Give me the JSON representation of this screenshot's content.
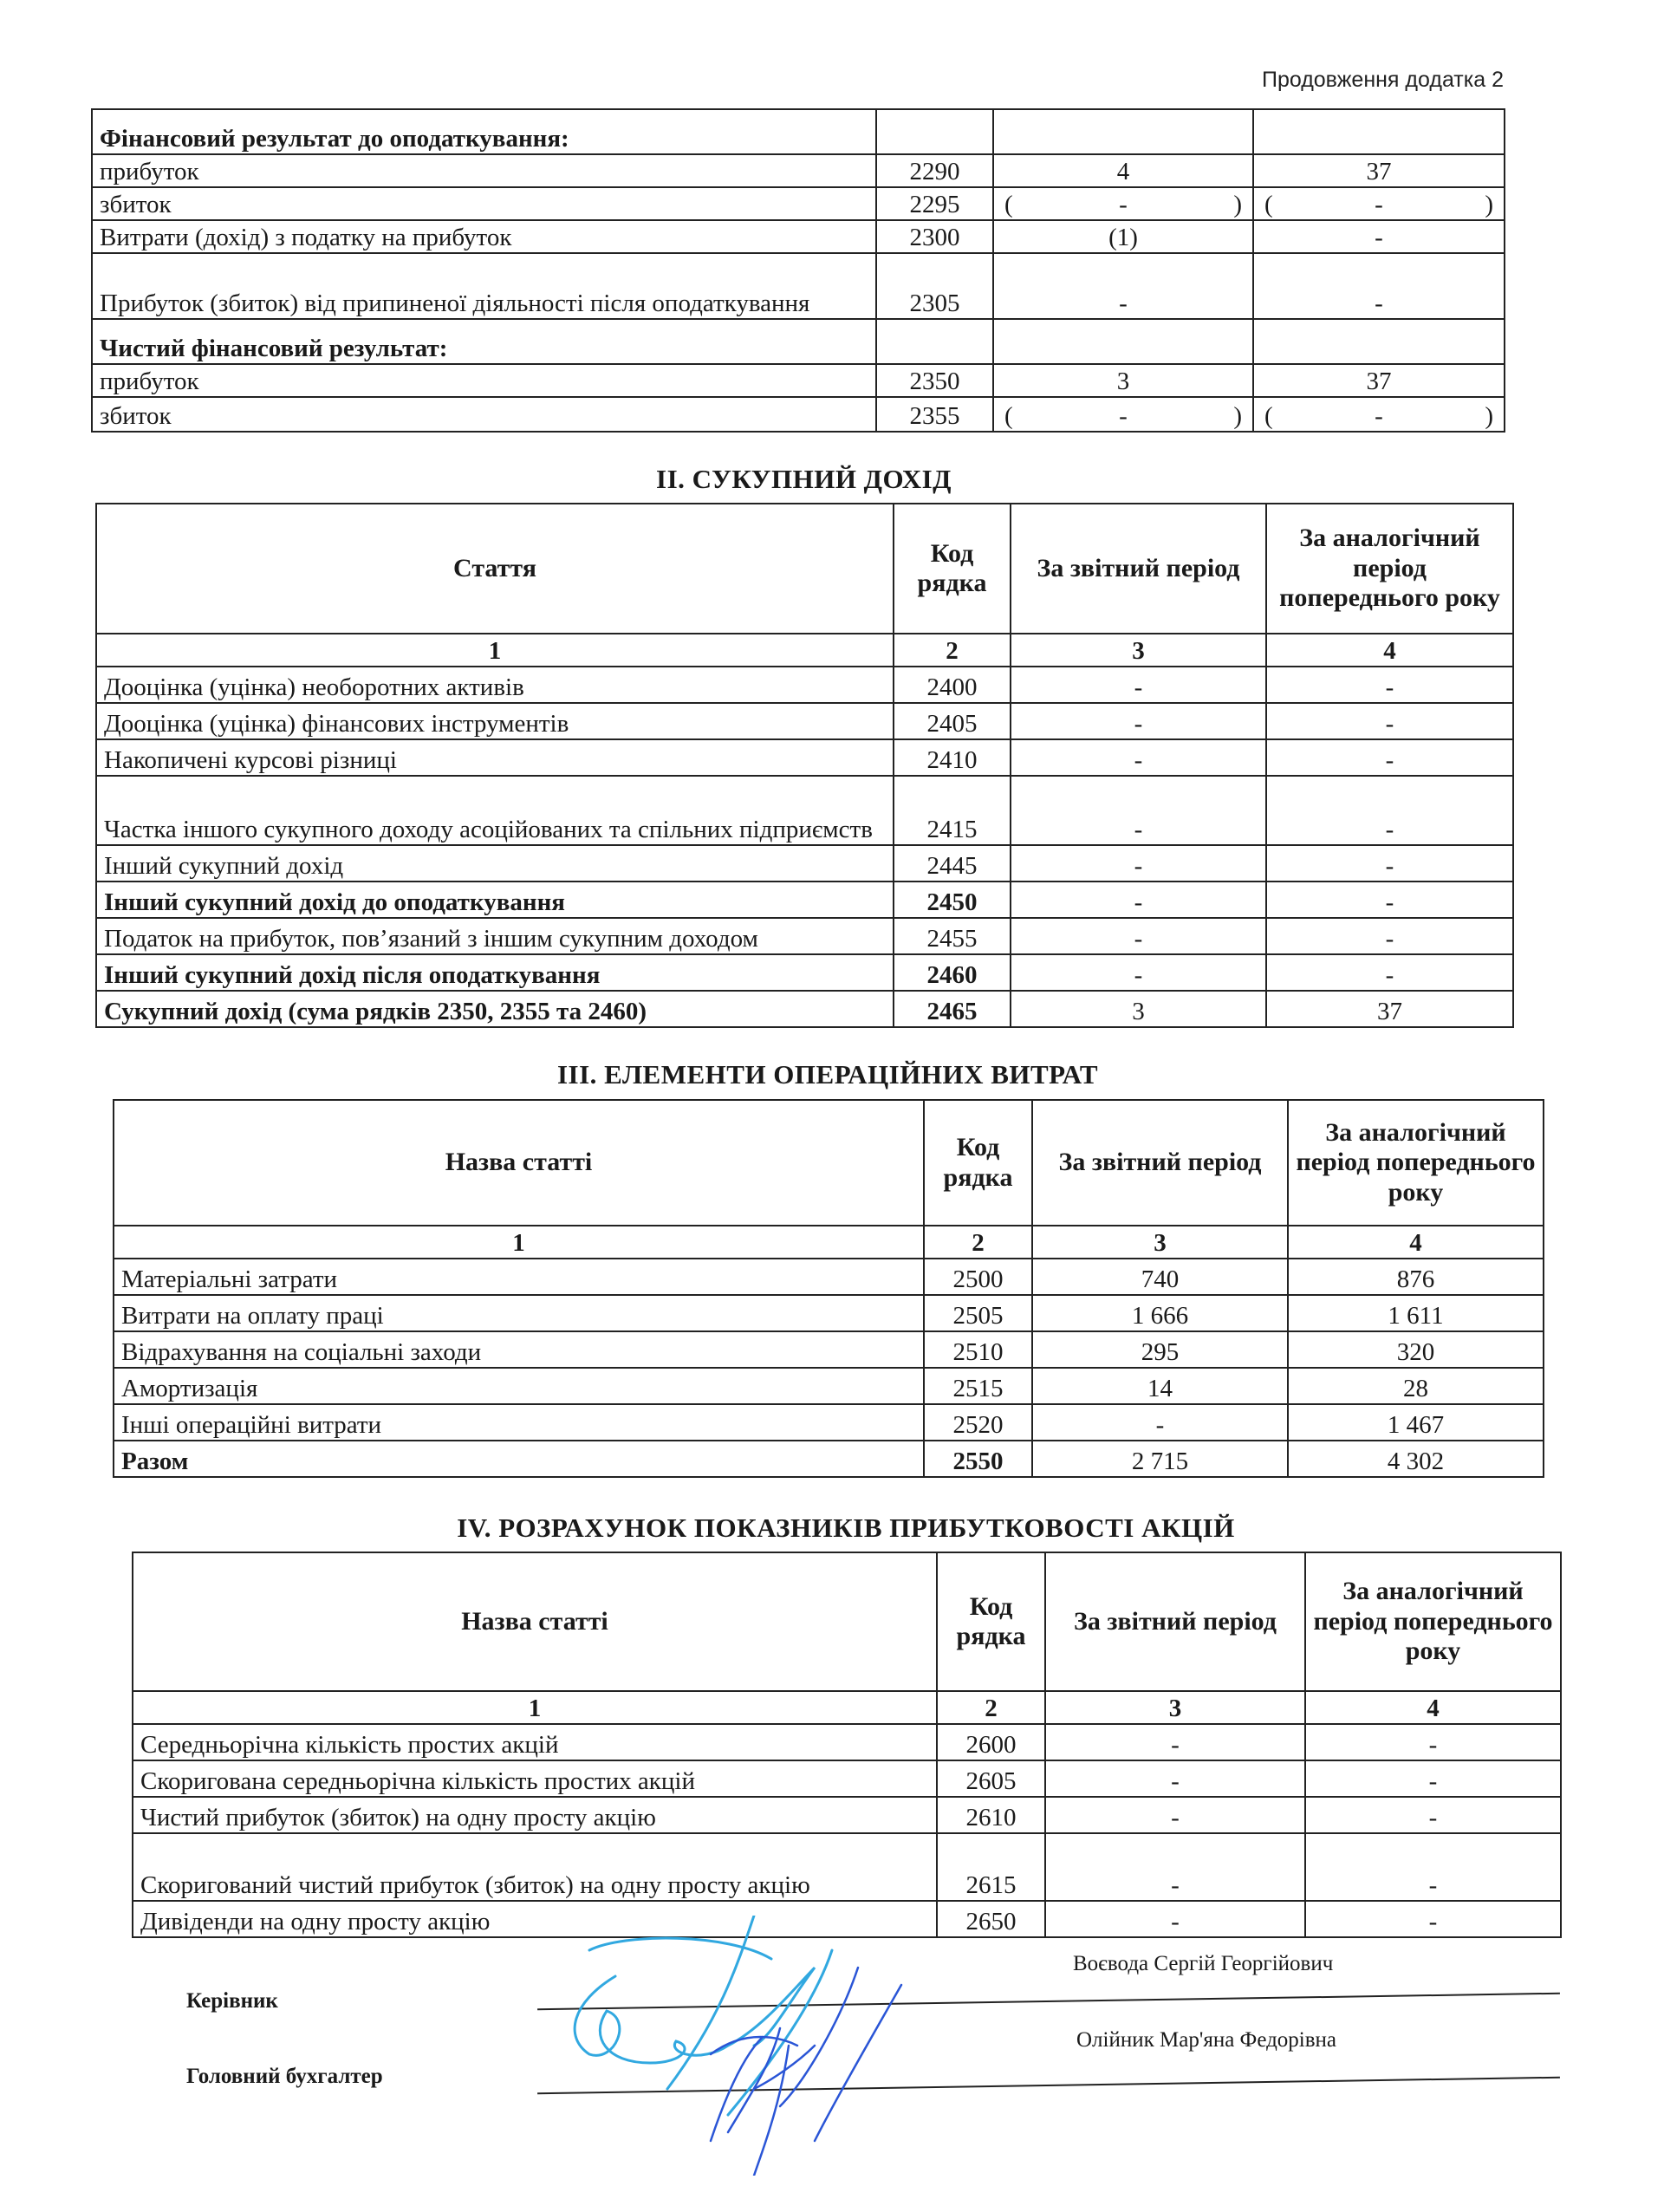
{
  "page": {
    "continued_label": "Продовження додатка 2"
  },
  "table1": {
    "rows": [
      {
        "label": "Фінансовий результат до оподаткування:",
        "code": "",
        "current": "",
        "previous": "",
        "bold": true
      },
      {
        "label": "прибуток",
        "code": "2290",
        "current": "4",
        "previous": "37"
      },
      {
        "label": "збиток",
        "code": "2295",
        "current": "-",
        "previous": "-",
        "parens": true
      },
      {
        "label": "Витрати (дохід) з податку на прибуток",
        "code": "2300",
        "current": "(1)",
        "previous": "-"
      },
      {
        "label": "Прибуток (збиток) від  припиненої діяльності після оподаткування",
        "code": "2305",
        "current": "-",
        "previous": "-"
      },
      {
        "label": "Чистий фінансовий результат:",
        "code": "",
        "current": "",
        "previous": "",
        "bold": true
      },
      {
        "label": "прибуток",
        "code": "2350",
        "current": "3",
        "previous": "37"
      },
      {
        "label": "збиток",
        "code": "2355",
        "current": "-",
        "previous": "-",
        "parens": true
      }
    ]
  },
  "table2": {
    "title": "II. СУКУПНИЙ ДОХІД",
    "headers": [
      "Стаття",
      "Код рядка",
      "За звітний період",
      "За аналогічний період попереднього року"
    ],
    "col_numbers": [
      "1",
      "2",
      "3",
      "4"
    ],
    "rows": [
      {
        "label": "Дооцінка (уцінка) необоротних активів",
        "code": "2400",
        "current": "-",
        "previous": "-"
      },
      {
        "label": "Дооцінка (уцінка) фінансових інструментів",
        "code": "2405",
        "current": "-",
        "previous": "-"
      },
      {
        "label": "Накопичені курсові різниці",
        "code": "2410",
        "current": "-",
        "previous": "-"
      },
      {
        "label": "Частка іншого сукупного доходу  асоційованих та спільних підприємств",
        "code": "2415",
        "current": "-",
        "previous": "-"
      },
      {
        "label": "Інший сукупний дохід",
        "code": "2445",
        "current": "-",
        "previous": "-"
      },
      {
        "label": "Інший сукупний дохід до оподаткування",
        "code": "2450",
        "current": "-",
        "previous": "-",
        "bold": true
      },
      {
        "label": "Податок на прибуток, пов’язаний з іншим сукупним доходом",
        "code": "2455",
        "current": "-",
        "previous": "-"
      },
      {
        "label": "Інший сукупний дохід після оподаткування",
        "code": "2460",
        "current": "-",
        "previous": "-",
        "bold": true
      },
      {
        "label": "Сукупний дохід (сума рядків 2350, 2355 та 2460)",
        "code": "2465",
        "current": "3",
        "previous": "37",
        "bold": true
      }
    ]
  },
  "table3": {
    "title": "III. ЕЛЕМЕНТИ ОПЕРАЦІЙНИХ ВИТРАТ",
    "headers": [
      "Назва статті",
      "Код рядка",
      "За звітний період",
      "За аналогічний період попереднього року"
    ],
    "col_numbers": [
      "1",
      "2",
      "3",
      "4"
    ],
    "rows": [
      {
        "label": "Матеріальні затрати",
        "code": "2500",
        "current": "740",
        "previous": "876"
      },
      {
        "label": "Витрати на оплату праці",
        "code": "2505",
        "current": "1 666",
        "previous": "1 611"
      },
      {
        "label": "Відрахування на соціальні заходи",
        "code": "2510",
        "current": "295",
        "previous": "320"
      },
      {
        "label": "Амортизація",
        "code": "2515",
        "current": "14",
        "previous": "28"
      },
      {
        "label": "Інші операційні витрати",
        "code": "2520",
        "current": "-",
        "previous": "1 467"
      },
      {
        "label": "Разом",
        "code": "2550",
        "current": "2 715",
        "previous": "4 302",
        "bold": true
      }
    ]
  },
  "table4": {
    "title": "IV.  РОЗРАХУНОК ПОКАЗНИКІВ ПРИБУТКОВОСТІ АКЦІЙ",
    "headers": [
      "Назва статті",
      "Код рядка",
      "За звітний період",
      "За аналогічний період попереднього року"
    ],
    "col_numbers": [
      "1",
      "2",
      "3",
      "4"
    ],
    "rows": [
      {
        "label": "Середньорічна кількість простих акцій",
        "code": "2600",
        "current": "-",
        "previous": "-"
      },
      {
        "label": "Скоригована середньорічна кількість простих акцій",
        "code": "2605",
        "current": "-",
        "previous": "-"
      },
      {
        "label": "Чистий прибуток (збиток) на одну просту акцію",
        "code": "2610",
        "current": "-",
        "previous": "-"
      },
      {
        "label": "Скоригований чистий прибуток (збиток)  на одну просту акцію",
        "code": "2615",
        "current": "-",
        "previous": "-"
      },
      {
        "label": "Дивіденди на одну просту акцію",
        "code": "2650",
        "current": "-",
        "previous": "-"
      }
    ]
  },
  "signatures": {
    "director_label": "Керівник",
    "director_name": "Воєвода Сергій Георгійович",
    "accountant_label": "Головний бухгалтер",
    "accountant_name": "Олійник Мар'яна Федорівна",
    "ink_color": "#2a6fd6"
  }
}
